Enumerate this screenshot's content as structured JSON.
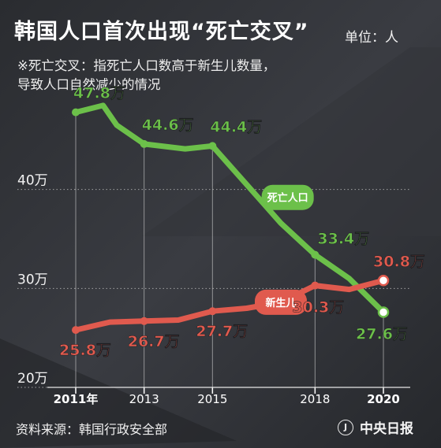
{
  "header": {
    "title": "韩国人口首次出现“死亡交叉”",
    "unit": "单位：人",
    "note_lines": [
      "※死亡交叉：指死亡人口数高于新生儿数量，",
      "导致人口自然减少的情况"
    ]
  },
  "footer": {
    "source": "资料来源：韩国行政安全部",
    "logo_icon": "J",
    "logo_text": "中央日报"
  },
  "colors": {
    "deaths": "#6cc04a",
    "births": "#e05a4e",
    "background": "#2b2d31"
  },
  "chart_data": {
    "type": "line",
    "title": "韩国人口首次出现“死亡交叉”",
    "ylim": [
      20,
      50
    ],
    "y_ticks": [
      {
        "value": 40,
        "label": "40万"
      },
      {
        "value": 30,
        "label": "30万"
      },
      {
        "value": 20,
        "label": "20万"
      }
    ],
    "x_ticks": [
      {
        "year": 2011,
        "label": "2011年"
      },
      {
        "year": 2013,
        "label": "2013"
      },
      {
        "year": 2015,
        "label": "2015"
      },
      {
        "year": 2018,
        "label": "2018"
      },
      {
        "year": 2020,
        "label": "2020"
      }
    ],
    "series": [
      {
        "name": "死亡人口",
        "points": [
          {
            "year": 2011.0,
            "value": 47.8
          },
          {
            "year": 2011.8,
            "value": 48.5
          },
          {
            "year": 2012.2,
            "value": 46.5
          },
          {
            "year": 2013.0,
            "value": 44.6
          },
          {
            "year": 2014.2,
            "value": 44.1
          },
          {
            "year": 2015.0,
            "value": 44.4
          },
          {
            "year": 2016.0,
            "value": 40.5
          },
          {
            "year": 2017.0,
            "value": 36.6
          },
          {
            "year": 2018.0,
            "value": 33.4
          },
          {
            "year": 2019.0,
            "value": 31.0
          },
          {
            "year": 2020.0,
            "value": 27.6
          }
        ],
        "labels": [
          {
            "year": 2011.0,
            "value": 47.8,
            "text": "47.8万"
          },
          {
            "year": 2013.0,
            "value": 44.6,
            "text": "44.6万"
          },
          {
            "year": 2015.0,
            "value": 44.4,
            "text": "44.4万"
          },
          {
            "year": 2018.0,
            "value": 33.4,
            "text": "33.4万"
          },
          {
            "year": 2020.0,
            "value": 27.6,
            "text": "27.6万"
          }
        ]
      },
      {
        "name": "新生儿",
        "points": [
          {
            "year": 2011.0,
            "value": 25.8
          },
          {
            "year": 2012.0,
            "value": 26.6
          },
          {
            "year": 2013.0,
            "value": 26.7
          },
          {
            "year": 2014.0,
            "value": 26.8
          },
          {
            "year": 2015.0,
            "value": 27.7
          },
          {
            "year": 2016.0,
            "value": 28.0
          },
          {
            "year": 2017.0,
            "value": 28.6
          },
          {
            "year": 2018.0,
            "value": 30.3
          },
          {
            "year": 2019.0,
            "value": 29.9
          },
          {
            "year": 2020.0,
            "value": 30.8
          }
        ],
        "labels": [
          {
            "year": 2011.0,
            "value": 25.8,
            "text": "25.8万"
          },
          {
            "year": 2013.0,
            "value": 26.7,
            "text": "26.7万"
          },
          {
            "year": 2015.0,
            "value": 27.7,
            "text": "27.7万"
          },
          {
            "year": 2018.0,
            "value": 30.3,
            "text": "30.3万"
          },
          {
            "year": 2020.0,
            "value": 30.8,
            "text": "30.8万"
          }
        ]
      }
    ],
    "legend_placement": "inline-on-lines"
  }
}
